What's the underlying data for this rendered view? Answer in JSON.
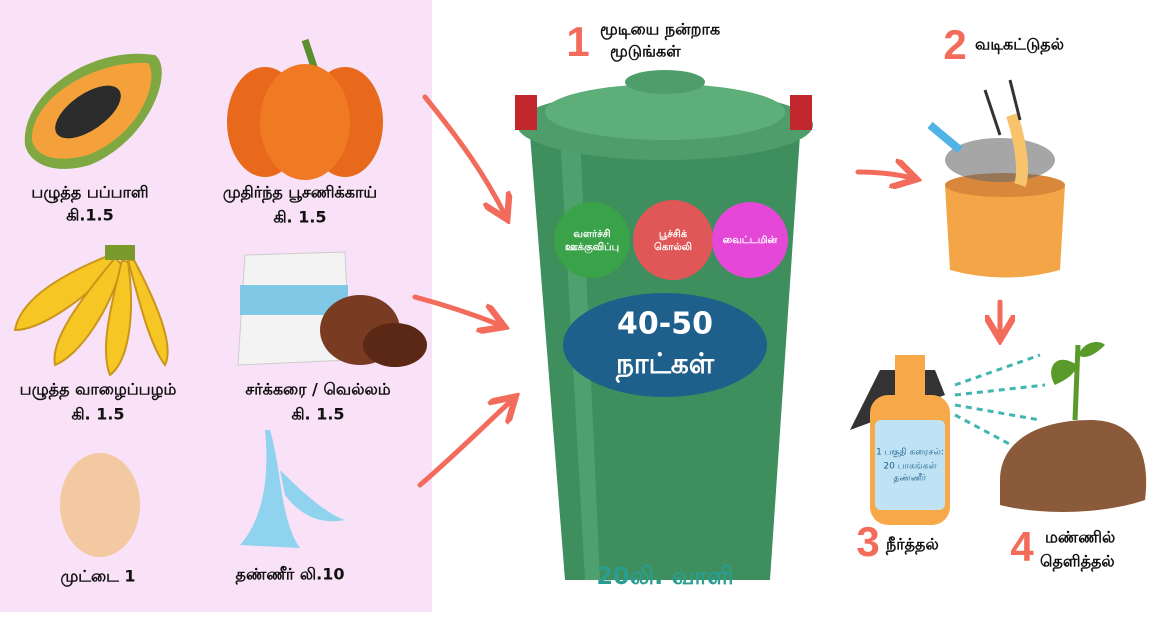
{
  "ingredients": [
    {
      "name": "பழுத்த பப்பாளி",
      "amount": "கி.1.5"
    },
    {
      "name": "முதிர்ந்த பூசணிக்காய்",
      "amount": "கி. 1.5"
    },
    {
      "name": "பழுத்த வாழைப்பழம்",
      "amount": "கி. 1.5"
    },
    {
      "name": "சர்க்கரை / வெல்லம்",
      "amount": "கி. 1.5"
    },
    {
      "name": "முட்டை 1"
    },
    {
      "name": "தண்ணீர் லி.10"
    }
  ],
  "bucket": {
    "step": {
      "number": "1",
      "lines": [
        "மூடியை நன்றாக",
        "மூடுங்கள்"
      ]
    },
    "balls": [
      {
        "lines": [
          "வளர்ச்சி",
          "ஊக்குவிப்பு"
        ]
      },
      {
        "lines": [
          "பூச்சிக்",
          "கொல்லி"
        ]
      },
      {
        "lines": [
          "வைட்டமின்"
        ]
      }
    ],
    "duration": [
      "40-50",
      "நாட்கள்"
    ],
    "label": "20லி. வாளி"
  },
  "steps": [
    {
      "number": "2",
      "lines": [
        "வடிகட்டுதல்"
      ]
    },
    {
      "number": "3",
      "lines": [
        "நீர்த்தல்"
      ]
    },
    {
      "number": "4",
      "lines": [
        "மண்ணில்",
        "தெளித்தல்"
      ]
    }
  ],
  "dilution": [
    "1 பகுதி கரைசல்:",
    "20 பாகங்கள்",
    "தண்ணீர்"
  ]
}
